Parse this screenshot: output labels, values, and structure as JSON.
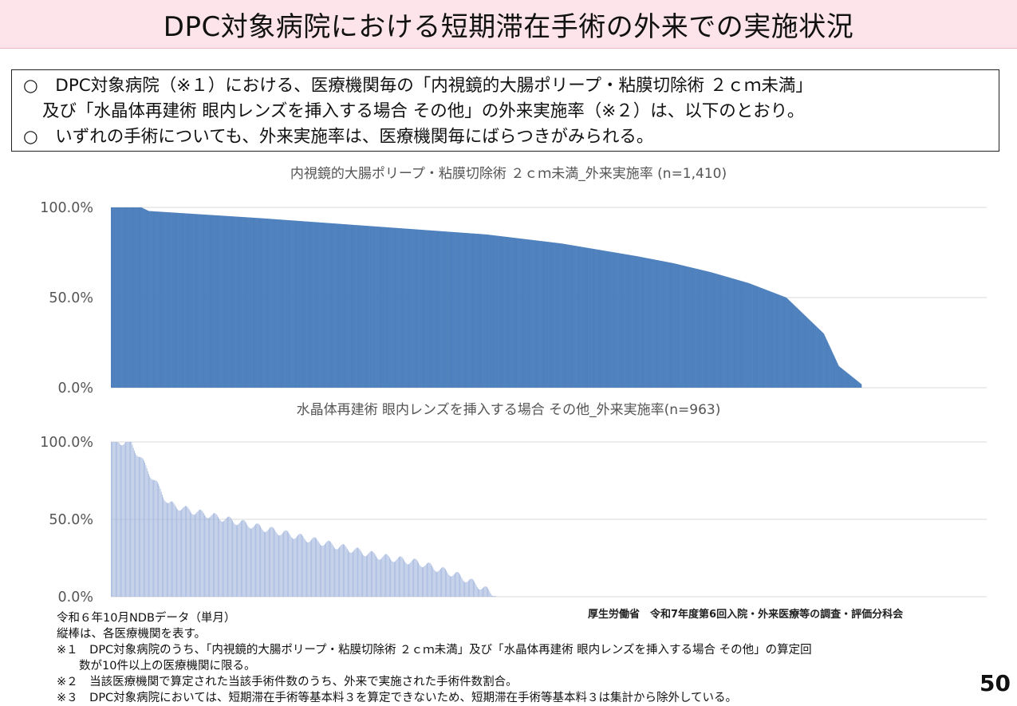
{
  "slide": {
    "title": "DPC対象病院における短期滞在手術の外来での実施状況",
    "summary": [
      "○　DPC対象病院（※１）における、医療機関毎の「内視鏡的大腸ポリープ・粘膜切除術 ２ｃｍ未満」",
      "及び「水晶体再建術 眼内レンズを挿入する場合 その他」の外来実施率（※２）は、以下のとおり。",
      "○　いずれの手術についても、外来実施率は、医療機関毎にばらつきがみられる。"
    ],
    "source": "厚生労働省　令和7年度第6回入院・外来医療等の調査・評価分科会",
    "notes": [
      "令和６年10月NDBデータ（単月）",
      "縦棒は、各医療機関を表す。",
      "※１　DPC対象病院のうち、「内視鏡的大腸ポリープ・粘膜切除術 ２ｃｍ未満」及び「水晶体再建術 眼内レンズを挿入する場合 その他」の算定回",
      "数が10件以上の医療機関に限る。",
      "※２　当該医療機関で算定された当該手術件数のうち、外来で実施された手術件数割合。",
      "※３　DPC対象病院においては、短期滞在手術等基本料３を算定できないため、短期滞在手術等基本料３は集計から除外している。"
    ],
    "page_number": "50"
  },
  "colors": {
    "title_band": "#fce4ea",
    "bar_dense": "#4f81bd",
    "bar_sparse": "#9fb3dc",
    "grid": "#d9d9d9"
  },
  "chart_data": [
    {
      "type": "bar",
      "title": "内視鏡的大腸ポリープ・粘膜切除術 ２ｃｍ未満_外来実施率 (n=1,410)",
      "n": 1410,
      "bar_count_shown": 1290,
      "sorted": "descending",
      "ylim": [
        0,
        100
      ],
      "yticks": [
        "0.0%",
        "50.0%",
        "100.0%"
      ],
      "grid": true,
      "profile": {
        "rank_fraction": [
          0.0,
          0.04,
          0.05,
          0.2,
          0.4,
          0.5,
          0.6,
          0.7,
          0.75,
          0.8,
          0.85,
          0.9,
          0.95,
          0.97,
          1.0
        ],
        "percent": [
          100,
          100,
          98,
          94,
          88,
          85,
          80,
          73,
          69,
          64,
          58,
          50,
          30,
          12,
          2
        ]
      }
    },
    {
      "type": "bar",
      "title": "水晶体再建術 眼内レンズを挿入する場合 その他_外来実施率(n=963)",
      "n": 963,
      "bar_count_shown": 400,
      "sorted": "descending",
      "ylim": [
        0,
        100
      ],
      "yticks": [
        "0.0%",
        "50.0%",
        "100.0%"
      ],
      "grid": true,
      "profile": {
        "rank_fraction": [
          0.0,
          0.05,
          0.08,
          0.15,
          0.2,
          0.3,
          0.4,
          0.5,
          0.6,
          0.7,
          0.8,
          0.9,
          0.95,
          1.0
        ],
        "percent": [
          100,
          100,
          88,
          60,
          56,
          50,
          44,
          38,
          32,
          26,
          22,
          14,
          8,
          1
        ]
      }
    }
  ]
}
